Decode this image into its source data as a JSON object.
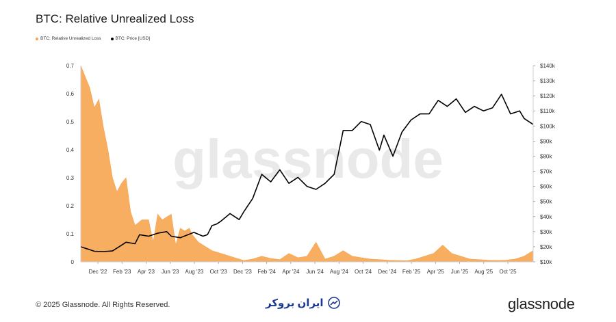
{
  "header": {
    "title": "BTC: Relative Unrealized Loss"
  },
  "chart_data": {
    "type": "area",
    "title": "BTC: Relative Unrealized Loss",
    "watermark": "glassnode",
    "legend": [
      {
        "name": "BTC: Relative Unrealized Loss",
        "color": "#f7a34b"
      },
      {
        "name": "BTC: Price [USD]",
        "color": "#000000"
      }
    ],
    "x_ticks": [
      "Dec '22",
      "Feb '23",
      "Apr '23",
      "Jun '23",
      "Aug '23",
      "Oct '23",
      "Dec '23",
      "Feb '24",
      "Apr '24",
      "Jun '24",
      "Aug '24",
      "Oct '24",
      "Dec '24",
      "Feb '25",
      "Apr '25",
      "Jun '25",
      "Aug '25",
      "Oct '25"
    ],
    "x_range": [
      "2022-11-10",
      "2025-11-20"
    ],
    "y_left": {
      "min": 0,
      "max": 0.7,
      "ticks": [
        "0",
        "0.1",
        "0.2",
        "0.3",
        "0.4",
        "0.5",
        "0.6",
        "0.7"
      ]
    },
    "y_right": {
      "min": 10000,
      "max": 140000,
      "ticks": [
        "$10k",
        "$20k",
        "$30k",
        "$40k",
        "$50k",
        "$60k",
        "$70k",
        "$80k",
        "$90k",
        "$100k",
        "$110k",
        "$120k",
        "$130k",
        "$140k"
      ]
    },
    "series": [
      {
        "name": "BTC: Relative Unrealized Loss",
        "axis": "left",
        "color": "#f7a34b",
        "t": [
          0.0,
          0.02,
          0.03,
          0.04,
          0.05,
          0.06,
          0.07,
          0.08,
          0.09,
          0.1,
          0.11,
          0.12,
          0.135,
          0.15,
          0.16,
          0.17,
          0.18,
          0.2,
          0.21,
          0.22,
          0.23,
          0.24,
          0.245,
          0.26,
          0.27,
          0.28,
          0.29,
          0.3,
          0.31,
          0.32,
          0.33,
          0.34,
          0.35,
          0.36,
          0.38,
          0.4,
          0.42,
          0.44,
          0.46,
          0.48,
          0.5,
          0.52,
          0.54,
          0.56,
          0.58,
          0.6,
          0.62,
          0.64,
          0.66,
          0.68,
          0.7,
          0.72,
          0.74,
          0.76,
          0.78,
          0.8,
          0.82,
          0.84,
          0.86,
          0.88,
          0.9,
          0.92,
          0.94,
          0.96,
          0.98,
          1.0
        ],
        "values": [
          0.7,
          0.62,
          0.55,
          0.58,
          0.48,
          0.4,
          0.3,
          0.25,
          0.28,
          0.3,
          0.18,
          0.13,
          0.15,
          0.15,
          0.07,
          0.17,
          0.15,
          0.17,
          0.06,
          0.12,
          0.11,
          0.12,
          0.1,
          0.07,
          0.06,
          0.05,
          0.04,
          0.035,
          0.03,
          0.025,
          0.02,
          0.015,
          0.01,
          0.005,
          0.01,
          0.02,
          0.012,
          0.008,
          0.03,
          0.015,
          0.02,
          0.07,
          0.01,
          0.02,
          0.04,
          0.02,
          0.015,
          0.01,
          0.008,
          0.006,
          0.005,
          0.004,
          0.01,
          0.02,
          0.03,
          0.06,
          0.03,
          0.02,
          0.01,
          0.008,
          0.006,
          0.005,
          0.006,
          0.01,
          0.02,
          0.04
        ]
      },
      {
        "name": "BTC: Price [USD]",
        "axis": "right",
        "color": "#000000",
        "t": [
          0.0,
          0.02,
          0.03,
          0.05,
          0.07,
          0.09,
          0.1,
          0.12,
          0.13,
          0.15,
          0.17,
          0.19,
          0.2,
          0.22,
          0.25,
          0.27,
          0.28,
          0.29,
          0.3,
          0.31,
          0.33,
          0.35,
          0.36,
          0.38,
          0.4,
          0.42,
          0.44,
          0.46,
          0.48,
          0.5,
          0.52,
          0.54,
          0.56,
          0.58,
          0.6,
          0.62,
          0.64,
          0.66,
          0.67,
          0.69,
          0.71,
          0.73,
          0.75,
          0.77,
          0.79,
          0.81,
          0.83,
          0.85,
          0.87,
          0.89,
          0.91,
          0.93,
          0.95,
          0.97,
          0.98,
          1.0
        ],
        "values": [
          20000,
          18000,
          17000,
          16800,
          17200,
          21000,
          23000,
          22000,
          28000,
          27000,
          29000,
          30000,
          27000,
          26000,
          29500,
          27000,
          28000,
          34000,
          35000,
          37000,
          42000,
          38000,
          43000,
          52000,
          68000,
          63000,
          71000,
          62000,
          66000,
          60000,
          58000,
          62000,
          68000,
          97000,
          97000,
          103000,
          101000,
          84000,
          94000,
          80000,
          96000,
          104000,
          108000,
          108000,
          117000,
          113000,
          118000,
          109000,
          113000,
          110000,
          112000,
          121000,
          108000,
          110000,
          105000,
          101000
        ]
      }
    ]
  },
  "footer": {
    "copyright": "© 2025 Glassnode. All Rights Reserved.",
    "partner": "ایران بروکر",
    "brand": "glassnode"
  }
}
